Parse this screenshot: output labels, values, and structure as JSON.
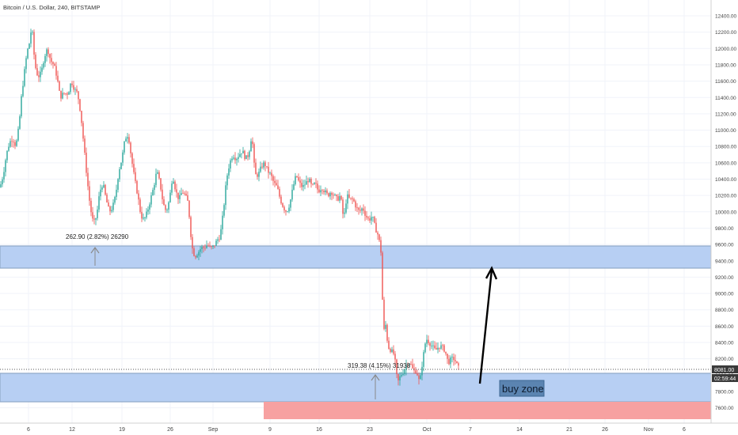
{
  "header": {
    "title": "Bitcoin / U.S. Dollar, 240, BITSTAMP"
  },
  "price_axis": {
    "ticks": [
      "12400.00",
      "12200.00",
      "12000.00",
      "11800.00",
      "11600.00",
      "11400.00",
      "11200.00",
      "11000.00",
      "10800.00",
      "10600.00",
      "10400.00",
      "10200.00",
      "10000.00",
      "9800.00",
      "9600.00",
      "9400.00",
      "9200.00",
      "9000.00",
      "8800.00",
      "8600.00",
      "8400.00",
      "8200.00",
      "8000.00",
      "7800.00",
      "7600.00"
    ],
    "current_price": "8081.00",
    "countdown": "02:59:44"
  },
  "time_axis": {
    "ticks": [
      "6",
      "12",
      "19",
      "26",
      "Sep",
      "9",
      "16",
      "23",
      "Oct",
      "7",
      "14",
      "21",
      "26",
      "Nov",
      "6"
    ]
  },
  "annotations": {
    "measure_1": "262.90 (2.82%) 26290",
    "measure_2": "319.38 (4.15%) 31938",
    "buy_zone": "buy zone"
  },
  "colors": {
    "up": "#26a69a",
    "down": "#ef5350",
    "zone_fill": "#b7cff3",
    "zone_border": "#8fa8c8",
    "red_zone": "#f7a1a1",
    "buy_label_bg": "#5b84b1",
    "arrow": "#000000"
  },
  "chart_data": {
    "type": "candlestick",
    "symbol": "BTCUSD",
    "interval": "240",
    "exchange": "BITSTAMP",
    "ylim": [
      7500,
      12500
    ],
    "path": [
      [
        0,
        10300
      ],
      [
        4,
        10450
      ],
      [
        8,
        10700
      ],
      [
        12,
        10850
      ],
      [
        16,
        10900
      ],
      [
        20,
        10800
      ],
      [
        24,
        11050
      ],
      [
        27,
        11400
      ],
      [
        30,
        11650
      ],
      [
        34,
        11950
      ],
      [
        38,
        12100
      ],
      [
        40,
        12300
      ],
      [
        44,
        11800
      ],
      [
        48,
        11650
      ],
      [
        52,
        11700
      ],
      [
        56,
        11900
      ],
      [
        60,
        12000
      ],
      [
        64,
        11850
      ],
      [
        68,
        11800
      ],
      [
        72,
        11650
      ],
      [
        76,
        11400
      ],
      [
        80,
        11450
      ],
      [
        86,
        11450
      ],
      [
        90,
        11600
      ],
      [
        94,
        11500
      ],
      [
        98,
        11450
      ],
      [
        102,
        11200
      ],
      [
        106,
        10800
      ],
      [
        110,
        10400
      ],
      [
        114,
        10050
      ],
      [
        118,
        9850
      ],
      [
        122,
        9950
      ],
      [
        126,
        10250
      ],
      [
        130,
        10350
      ],
      [
        134,
        10150
      ],
      [
        138,
        10000
      ],
      [
        142,
        10050
      ],
      [
        146,
        10200
      ],
      [
        150,
        10500
      ],
      [
        154,
        10650
      ],
      [
        158,
        10900
      ],
      [
        162,
        10950
      ],
      [
        166,
        10650
      ],
      [
        170,
        10400
      ],
      [
        174,
        10200
      ],
      [
        178,
        9950
      ],
      [
        182,
        9900
      ],
      [
        186,
        10000
      ],
      [
        190,
        10150
      ],
      [
        194,
        10300
      ],
      [
        198,
        10500
      ],
      [
        202,
        10350
      ],
      [
        206,
        10100
      ],
      [
        210,
        10000
      ],
      [
        214,
        10150
      ],
      [
        218,
        10450
      ],
      [
        222,
        10250
      ],
      [
        226,
        10150
      ],
      [
        230,
        10250
      ],
      [
        234,
        10200
      ],
      [
        238,
        10100
      ],
      [
        240,
        9800
      ],
      [
        243,
        9550
      ],
      [
        246,
        9450
      ],
      [
        250,
        9500
      ],
      [
        254,
        9560
      ],
      [
        258,
        9560
      ],
      [
        262,
        9600
      ],
      [
        266,
        9550
      ],
      [
        270,
        9580
      ],
      [
        274,
        9650
      ],
      [
        278,
        9700
      ],
      [
        282,
        10000
      ],
      [
        286,
        10400
      ],
      [
        290,
        10600
      ],
      [
        294,
        10700
      ],
      [
        298,
        10650
      ],
      [
        302,
        10700
      ],
      [
        306,
        10750
      ],
      [
        310,
        10650
      ],
      [
        314,
        10700
      ],
      [
        318,
        10950
      ],
      [
        322,
        10450
      ],
      [
        326,
        10450
      ],
      [
        330,
        10550
      ],
      [
        334,
        10600
      ],
      [
        338,
        10500
      ],
      [
        342,
        10450
      ],
      [
        346,
        10350
      ],
      [
        350,
        10300
      ],
      [
        354,
        10150
      ],
      [
        358,
        10050
      ],
      [
        362,
        10000
      ],
      [
        366,
        10100
      ],
      [
        370,
        10300
      ],
      [
        374,
        10450
      ],
      [
        378,
        10350
      ],
      [
        382,
        10300
      ],
      [
        386,
        10350
      ],
      [
        390,
        10400
      ],
      [
        394,
        10300
      ],
      [
        398,
        10350
      ],
      [
        402,
        10250
      ],
      [
        406,
        10300
      ],
      [
        410,
        10250
      ],
      [
        414,
        10200
      ],
      [
        418,
        10250
      ],
      [
        422,
        10200
      ],
      [
        426,
        10150
      ],
      [
        430,
        10200
      ],
      [
        434,
        9900
      ],
      [
        438,
        10200
      ],
      [
        442,
        10150
      ],
      [
        446,
        10150
      ],
      [
        450,
        10050
      ],
      [
        454,
        10000
      ],
      [
        458,
        10050
      ],
      [
        462,
        9950
      ],
      [
        466,
        9900
      ],
      [
        470,
        9950
      ],
      [
        474,
        9800
      ],
      [
        478,
        9700
      ],
      [
        482,
        9450
      ],
      [
        484,
        8400
      ],
      [
        486,
        8700
      ],
      [
        490,
        8350
      ],
      [
        494,
        8300
      ],
      [
        498,
        8250
      ],
      [
        502,
        7900
      ],
      [
        506,
        8000
      ],
      [
        510,
        8050
      ],
      [
        514,
        8150
      ],
      [
        518,
        8150
      ],
      [
        522,
        8050
      ],
      [
        526,
        8050
      ],
      [
        530,
        7900
      ],
      [
        534,
        8200
      ],
      [
        538,
        8450
      ],
      [
        542,
        8400
      ],
      [
        546,
        8350
      ],
      [
        550,
        8300
      ],
      [
        554,
        8350
      ],
      [
        558,
        8350
      ],
      [
        562,
        8300
      ],
      [
        566,
        8150
      ],
      [
        570,
        8200
      ],
      [
        574,
        8200
      ],
      [
        578,
        8100
      ],
      [
        580,
        8081
      ]
    ]
  }
}
